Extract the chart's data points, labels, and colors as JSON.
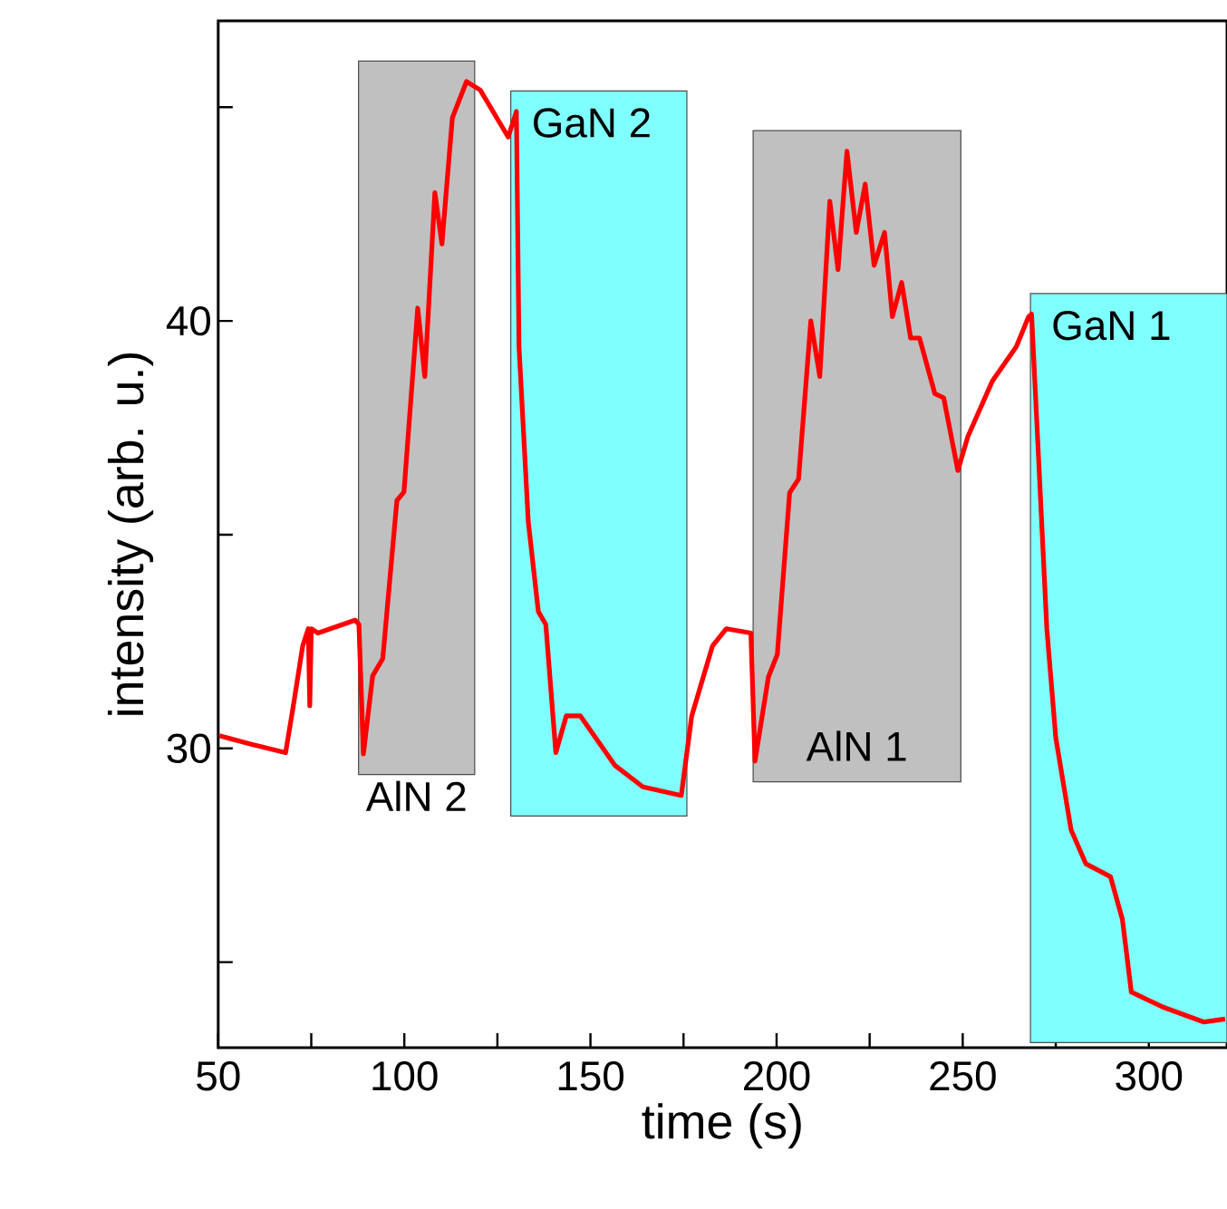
{
  "chart_data": {
    "type": "line",
    "xlabel": "time (s)",
    "ylabel": "intensity (arb. u.)",
    "xlim": [
      50,
      321
    ],
    "ylim": [
      23,
      47.02
    ],
    "xticks": [
      50,
      {
        "value": 75,
        "label": null
      },
      100,
      {
        "value": 125,
        "label": null
      },
      150,
      {
        "value": 175,
        "label": null
      },
      200,
      {
        "value": 225,
        "label": null
      },
      250,
      {
        "value": 275,
        "label": null
      },
      300
    ],
    "yticks": [
      {
        "value": 25,
        "label": null
      },
      30,
      {
        "value": 35,
        "label": null
      },
      40,
      {
        "value": 45,
        "label": null
      }
    ],
    "line_style": "solid",
    "marker": "none",
    "series": [
      {
        "color": "#ff0000",
        "x": [
          50.3,
          58.7,
          68.1,
          70.0,
          72.7,
          74.2,
          74.6,
          75.0,
          76.8,
          86.8,
          87.8,
          89.0,
          91.5,
          94.2,
          98.0,
          99.9,
          103.6,
          105.5,
          108.2,
          110.1,
          112.9,
          116.7,
          120.4,
          127.9,
          130.1,
          130.8,
          133.3,
          136.0,
          138.0,
          140.7,
          143.5,
          147.3,
          156.6,
          164.1,
          174.4,
          177.2,
          182.8,
          186.5,
          193.1,
          194.2,
          197.8,
          200.2,
          203.5,
          205.9,
          209.2,
          211.6,
          214.3,
          216.5,
          218.9,
          221.4,
          223.8,
          226.2,
          229.0,
          231.1,
          233.6,
          236.0,
          238.4,
          242.5,
          244.9,
          248.7,
          251.4,
          258.0,
          264.4,
          267.7,
          268.5,
          272.6,
          275.0,
          279.1,
          283.1,
          289.7,
          292.9,
          295.3,
          303.5,
          314.8,
          320.5
        ],
        "values": [
          30.3,
          30.1,
          29.9,
          30.9,
          32.4,
          32.8,
          31.0,
          32.8,
          32.7,
          33.0,
          32.9,
          29.87,
          31.7,
          32.1,
          35.8,
          36.0,
          40.3,
          38.7,
          43.0,
          41.8,
          44.75,
          45.6,
          45.4,
          44.3,
          44.9,
          39.4,
          35.3,
          33.2,
          32.9,
          29.9,
          30.76,
          30.76,
          29.6,
          29.1,
          28.9,
          30.76,
          32.4,
          32.8,
          32.7,
          29.7,
          31.67,
          32.2,
          35.98,
          36.3,
          40.0,
          38.7,
          42.8,
          41.2,
          43.97,
          42.07,
          43.2,
          41.3,
          42.07,
          40.1,
          40.9,
          39.6,
          39.6,
          38.3,
          38.2,
          36.5,
          37.3,
          38.6,
          39.4,
          40.1,
          40.16,
          32.8,
          30.25,
          28.1,
          27.3,
          27.0,
          26.0,
          24.3,
          23.96,
          23.6,
          23.67
        ]
      }
    ],
    "bands": [
      {
        "axis": "x",
        "from": 87.7,
        "to": 118.9,
        "label": "AlN 2",
        "color": "#c0c0c0"
      },
      {
        "axis": "x",
        "from": 128.6,
        "to": 175.9,
        "label": "GaN 2",
        "color": "#80ffff"
      },
      {
        "axis": "x",
        "from": 193.7,
        "to": 249.5,
        "label": "AlN 1",
        "color": "#c0c0c0"
      },
      {
        "axis": "x",
        "from": 268.2,
        "to": 321,
        "label": "GaN 1",
        "color": "#80ffff"
      }
    ]
  }
}
